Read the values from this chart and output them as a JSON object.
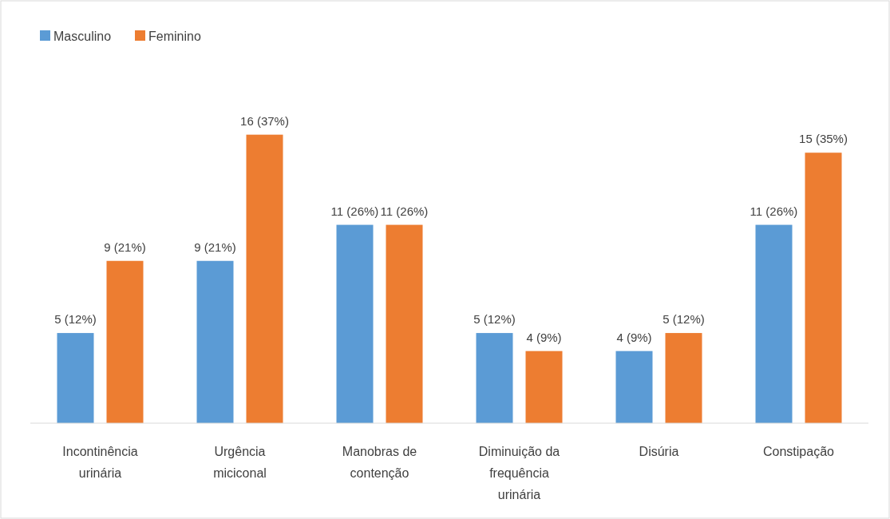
{
  "chart_data": {
    "type": "bar",
    "categories": [
      "Incontinência urinária",
      "Urgência miciconal",
      "Manobras de contenção",
      "Diminuição da frequência urinária",
      "Disúria",
      "Constipação"
    ],
    "series": [
      {
        "name": "Masculino",
        "color": "#5b9bd5",
        "values": [
          5,
          9,
          11,
          5,
          4,
          11
        ],
        "value_labels": [
          "5 (12%)",
          "9 (21%)",
          "11 (26%)",
          "5 (12%)",
          "4 (9%)",
          "11 (26%)"
        ]
      },
      {
        "name": "Feminino",
        "color": "#ed7d31",
        "values": [
          9,
          16,
          11,
          4,
          5,
          15
        ],
        "value_labels": [
          "9 (21%)",
          "16 (37%)",
          "11 (26%)",
          "4 (9%)",
          "5 (12%)",
          "15 (35%)"
        ]
      }
    ],
    "legend": "top left"
  }
}
